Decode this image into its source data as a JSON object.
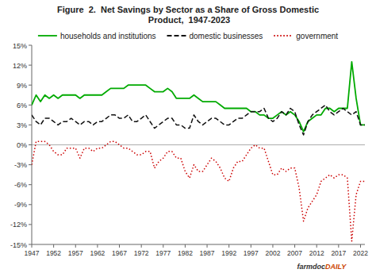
{
  "chart_data": {
    "type": "line",
    "title": "Figure  2.  Net Savings by Sector as a Share of Gross Domestic\n Product,  1947-2023",
    "x": [
      1947,
      1948,
      1949,
      1950,
      1951,
      1952,
      1953,
      1954,
      1955,
      1956,
      1957,
      1958,
      1959,
      1960,
      1961,
      1962,
      1963,
      1964,
      1965,
      1966,
      1967,
      1968,
      1969,
      1970,
      1971,
      1972,
      1973,
      1974,
      1975,
      1976,
      1977,
      1978,
      1979,
      1980,
      1981,
      1982,
      1983,
      1984,
      1985,
      1986,
      1987,
      1988,
      1989,
      1990,
      1991,
      1992,
      1993,
      1994,
      1995,
      1996,
      1997,
      1998,
      1999,
      2000,
      2001,
      2002,
      2003,
      2004,
      2005,
      2006,
      2007,
      2008,
      2009,
      2010,
      2011,
      2012,
      2013,
      2014,
      2015,
      2016,
      2017,
      2018,
      2019,
      2020,
      2021,
      2022,
      2023
    ],
    "series": [
      {
        "name": "households and institutions",
        "color": "#00aa00",
        "line_style": "solid",
        "values": [
          6.0,
          7.5,
          6.5,
          7.5,
          7.0,
          7.5,
          7.0,
          7.5,
          7.5,
          7.5,
          7.5,
          7.0,
          7.5,
          7.5,
          7.5,
          7.5,
          7.5,
          8.0,
          8.5,
          8.5,
          8.5,
          8.5,
          9.0,
          9.0,
          9.0,
          9.0,
          9.0,
          8.5,
          8.0,
          8.0,
          8.0,
          8.5,
          8.0,
          7.0,
          7.0,
          7.0,
          7.0,
          7.5,
          7.0,
          6.5,
          6.5,
          6.5,
          6.5,
          6.0,
          5.5,
          5.5,
          5.5,
          5.5,
          5.5,
          5.5,
          5.0,
          5.0,
          4.5,
          4.5,
          4.0,
          4.0,
          4.5,
          5.0,
          4.5,
          5.0,
          4.5,
          3.5,
          2.0,
          3.5,
          4.0,
          4.5,
          4.5,
          5.5,
          5.5,
          5.0,
          5.5,
          5.5,
          5.5,
          12.5,
          7.0,
          3.0,
          3.0
        ]
      },
      {
        "name": "domestic businesses",
        "color": "#111111",
        "line_style": "dashed",
        "values": [
          4.5,
          3.5,
          3.0,
          4.0,
          4.0,
          3.5,
          3.0,
          3.5,
          3.5,
          4.0,
          3.5,
          3.0,
          3.5,
          3.5,
          3.0,
          3.5,
          3.5,
          4.0,
          4.5,
          4.5,
          4.0,
          4.0,
          4.5,
          3.5,
          3.5,
          4.0,
          4.5,
          3.5,
          2.5,
          3.0,
          3.5,
          4.0,
          4.0,
          3.0,
          3.0,
          2.5,
          2.5,
          4.5,
          3.5,
          3.0,
          3.5,
          4.0,
          4.0,
          3.5,
          3.0,
          3.0,
          3.5,
          4.0,
          4.0,
          4.5,
          5.0,
          5.0,
          5.0,
          5.5,
          4.0,
          3.5,
          4.0,
          5.0,
          4.5,
          5.5,
          5.0,
          3.0,
          1.5,
          3.5,
          4.5,
          5.0,
          5.5,
          6.0,
          5.0,
          4.5,
          5.0,
          5.5,
          5.0,
          4.5,
          5.0,
          3.0,
          3.0
        ]
      },
      {
        "name": "government",
        "color": "#cc0000",
        "line_style": "dotted",
        "values": [
          -3.0,
          0.5,
          0.5,
          0.5,
          0.0,
          -1.0,
          -1.5,
          -1.5,
          -0.5,
          -0.5,
          -0.5,
          -2.0,
          -0.5,
          -0.5,
          -1.0,
          -0.5,
          -0.5,
          0.0,
          0.5,
          0.5,
          0.0,
          -0.5,
          -0.5,
          -1.0,
          -1.5,
          -1.5,
          -1.0,
          -1.0,
          -3.5,
          -2.5,
          -2.0,
          -1.0,
          -1.0,
          -2.0,
          -2.0,
          -4.0,
          -5.0,
          -3.0,
          -4.0,
          -4.0,
          -3.0,
          -2.0,
          -2.5,
          -3.5,
          -5.0,
          -5.5,
          -3.5,
          -2.5,
          -2.5,
          -1.5,
          -0.5,
          0.0,
          -0.5,
          -0.5,
          -2.5,
          -4.5,
          -4.5,
          -3.5,
          -4.0,
          -3.5,
          -3.5,
          -6.5,
          -11.5,
          -9.5,
          -8.5,
          -7.5,
          -5.5,
          -5.0,
          -4.5,
          -5.0,
          -4.5,
          -4.5,
          -5.0,
          -14.5,
          -7.5,
          -5.5,
          -5.5
        ]
      }
    ],
    "xlim": [
      1947,
      2023
    ],
    "xticks": [
      1947,
      1952,
      1957,
      1962,
      1967,
      1972,
      1977,
      1982,
      1987,
      1992,
      1997,
      2002,
      2007,
      2012,
      2017,
      2022
    ],
    "ylim": [
      -15,
      15
    ],
    "yticks": [
      {
        "value": -15,
        "label": "-15%"
      },
      {
        "value": -12,
        "label": "-12%"
      },
      {
        "value": -9,
        "label": "-9%"
      },
      {
        "value": -6,
        "label": "-6%"
      },
      {
        "value": -3,
        "label": "-3%"
      },
      {
        "value": 0,
        "label": "0%"
      },
      {
        "value": 3,
        "label": "3%"
      },
      {
        "value": 6,
        "label": "6%"
      },
      {
        "value": 9,
        "label": "9%"
      },
      {
        "value": 12,
        "label": "12%"
      },
      {
        "value": 15,
        "label": "15%"
      }
    ],
    "grid": false,
    "legend": "top",
    "annotations": [
      {
        "text": "farmdoc",
        "color": "#333333"
      },
      {
        "text": "DAILY",
        "color": "#cc4400"
      }
    ]
  }
}
